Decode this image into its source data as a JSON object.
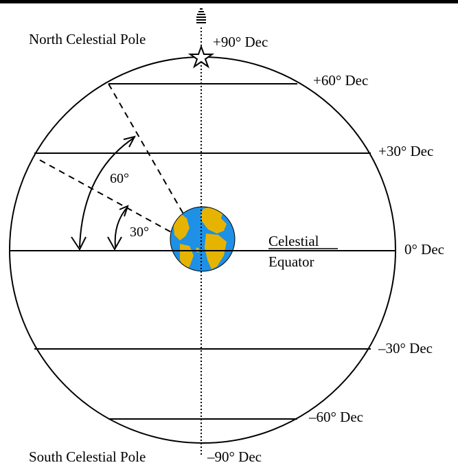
{
  "labels": {
    "north_pole": "North Celestial Pole",
    "south_pole": "South Celestial Pole",
    "celestial": "Celestial",
    "equator": "Equator"
  },
  "declinations": {
    "plus90": "+90° Dec",
    "plus60": "+60° Dec",
    "plus30": "+30° Dec",
    "zero": "0° Dec",
    "minus30": "–30° Dec",
    "minus60": "–60° Dec",
    "minus90": "–90° Dec"
  },
  "angles": {
    "sixty": "60°",
    "thirty": "30°"
  },
  "colors": {
    "ocean": "#1e90e6",
    "land": "#e6b400",
    "line": "#000000"
  }
}
